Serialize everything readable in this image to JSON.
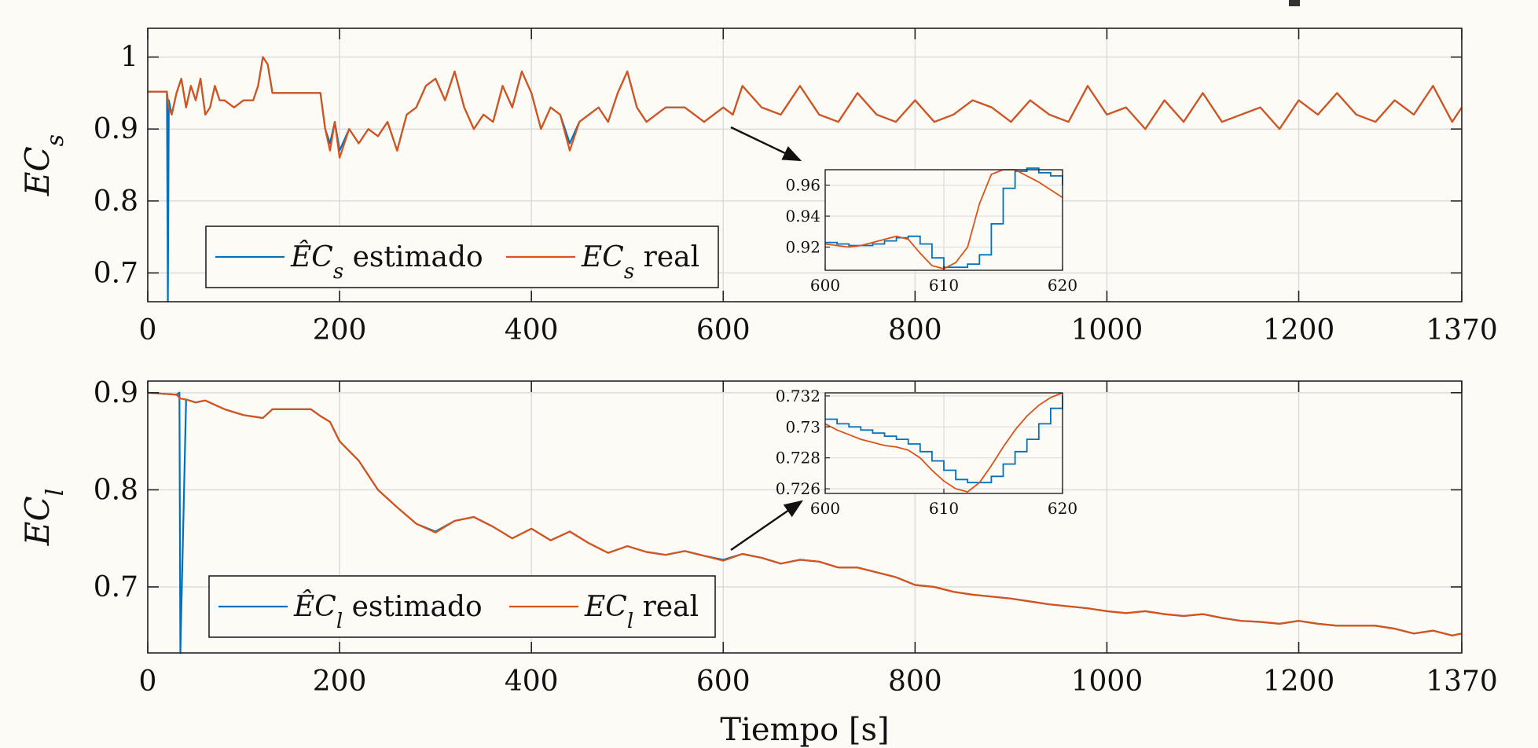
{
  "colors": {
    "estimated": "#0072BD",
    "real": "#D95319",
    "grid": "#dcdcdc",
    "background": "#fdfbf6"
  },
  "chart_data": [
    {
      "type": "line",
      "title": "",
      "xlabel": "",
      "ylabel": "EC",
      "ylabel_sub": "s",
      "xlim": [
        0,
        1370
      ],
      "ylim": [
        0.66,
        1.04
      ],
      "xticks": [
        0,
        200,
        400,
        600,
        800,
        1000,
        1200,
        1370
      ],
      "yticks": [
        0.7,
        0.8,
        0.9,
        1
      ],
      "ytick_labels": [
        "0.7",
        "0.8",
        "0.9",
        "1"
      ],
      "grid": true,
      "legend_position": "bottom-left",
      "series": [
        {
          "name": "ÊC_s estimado",
          "legend_main": "ÊC",
          "legend_sub": "s",
          "legend_suffix": " estimado",
          "color": "#0072BD",
          "x": [
            0,
            20,
            21,
            22,
            25,
            30,
            35,
            40,
            45,
            50,
            55,
            60,
            65,
            70,
            75,
            80,
            90,
            100,
            110,
            115,
            120,
            125,
            130,
            180,
            185,
            190,
            195,
            200,
            210,
            220,
            230,
            240,
            250,
            260,
            270,
            280,
            290,
            300,
            310,
            320,
            330,
            340,
            350,
            360,
            370,
            380,
            390,
            400,
            410,
            420,
            430,
            440,
            450,
            460,
            470,
            480,
            490,
            500,
            510,
            520,
            530,
            540,
            560,
            580,
            600,
            610,
            620,
            640,
            660,
            680,
            700,
            720,
            740,
            760,
            780,
            800,
            820,
            840,
            860,
            880,
            900,
            920,
            940,
            960,
            980,
            1000,
            1020,
            1040,
            1060,
            1080,
            1100,
            1120,
            1140,
            1160,
            1180,
            1200,
            1220,
            1240,
            1260,
            1280,
            1300,
            1320,
            1340,
            1360,
            1370
          ],
          "y": [
            0.952,
            0.952,
            0.66,
            0.94,
            0.92,
            0.95,
            0.97,
            0.93,
            0.96,
            0.94,
            0.97,
            0.92,
            0.93,
            0.96,
            0.94,
            0.94,
            0.93,
            0.94,
            0.94,
            0.96,
            1.0,
            0.99,
            0.95,
            0.95,
            0.9,
            0.88,
            0.91,
            0.87,
            0.9,
            0.88,
            0.9,
            0.89,
            0.91,
            0.87,
            0.92,
            0.93,
            0.96,
            0.97,
            0.94,
            0.98,
            0.93,
            0.9,
            0.92,
            0.91,
            0.96,
            0.93,
            0.98,
            0.95,
            0.9,
            0.93,
            0.92,
            0.88,
            0.91,
            0.92,
            0.93,
            0.91,
            0.95,
            0.98,
            0.93,
            0.91,
            0.92,
            0.93,
            0.93,
            0.91,
            0.93,
            0.92,
            0.96,
            0.93,
            0.92,
            0.96,
            0.92,
            0.91,
            0.95,
            0.92,
            0.91,
            0.94,
            0.91,
            0.92,
            0.94,
            0.93,
            0.91,
            0.94,
            0.92,
            0.91,
            0.96,
            0.92,
            0.93,
            0.9,
            0.94,
            0.91,
            0.95,
            0.91,
            0.92,
            0.93,
            0.9,
            0.94,
            0.92,
            0.95,
            0.92,
            0.91,
            0.94,
            0.92,
            0.96,
            0.91,
            0.93
          ]
        },
        {
          "name": "EC_s real",
          "legend_main": "EC",
          "legend_sub": "s",
          "legend_suffix": " real",
          "color": "#D95319",
          "x": [
            0,
            20,
            22,
            25,
            30,
            35,
            40,
            45,
            50,
            55,
            60,
            65,
            70,
            75,
            80,
            90,
            100,
            110,
            115,
            120,
            125,
            130,
            180,
            185,
            190,
            195,
            200,
            210,
            220,
            230,
            240,
            250,
            260,
            270,
            280,
            290,
            300,
            310,
            320,
            330,
            340,
            350,
            360,
            370,
            380,
            390,
            400,
            410,
            420,
            430,
            440,
            450,
            460,
            470,
            480,
            490,
            500,
            510,
            520,
            530,
            540,
            560,
            580,
            600,
            610,
            620,
            640,
            660,
            680,
            700,
            720,
            740,
            760,
            780,
            800,
            820,
            840,
            860,
            880,
            900,
            920,
            940,
            960,
            980,
            1000,
            1020,
            1040,
            1060,
            1080,
            1100,
            1120,
            1140,
            1160,
            1180,
            1200,
            1220,
            1240,
            1260,
            1280,
            1300,
            1320,
            1340,
            1360,
            1370
          ],
          "y": [
            0.952,
            0.952,
            0.93,
            0.92,
            0.95,
            0.97,
            0.93,
            0.96,
            0.94,
            0.97,
            0.92,
            0.93,
            0.96,
            0.94,
            0.94,
            0.93,
            0.94,
            0.94,
            0.96,
            1.0,
            0.99,
            0.95,
            0.95,
            0.9,
            0.87,
            0.91,
            0.86,
            0.9,
            0.88,
            0.9,
            0.89,
            0.91,
            0.87,
            0.92,
            0.93,
            0.96,
            0.97,
            0.94,
            0.98,
            0.93,
            0.9,
            0.92,
            0.91,
            0.96,
            0.93,
            0.98,
            0.95,
            0.9,
            0.93,
            0.92,
            0.87,
            0.91,
            0.92,
            0.93,
            0.91,
            0.95,
            0.98,
            0.93,
            0.91,
            0.92,
            0.93,
            0.93,
            0.91,
            0.93,
            0.92,
            0.96,
            0.93,
            0.92,
            0.96,
            0.92,
            0.91,
            0.95,
            0.92,
            0.91,
            0.94,
            0.91,
            0.92,
            0.94,
            0.93,
            0.91,
            0.94,
            0.92,
            0.91,
            0.96,
            0.92,
            0.93,
            0.9,
            0.94,
            0.91,
            0.95,
            0.91,
            0.92,
            0.93,
            0.9,
            0.94,
            0.92,
            0.95,
            0.92,
            0.91,
            0.94,
            0.92,
            0.96,
            0.91,
            0.93
          ]
        }
      ],
      "inset": {
        "xlim": [
          600,
          620
        ],
        "ylim": [
          0.905,
          0.97
        ],
        "xticks": [
          600,
          610,
          620
        ],
        "yticks": [
          0.92,
          0.94,
          0.96
        ],
        "ytick_labels": [
          "0.92",
          "0.94",
          "0.96"
        ],
        "series": [
          {
            "name": "estimado",
            "color": "#0072BD",
            "step": true,
            "x": [
              600,
              601,
              602,
              603,
              604,
              605,
              606,
              607,
              608,
              609,
              610,
              611,
              612,
              613,
              614,
              615,
              616,
              617,
              618,
              619,
              620
            ],
            "y": [
              0.923,
              0.922,
              0.921,
              0.921,
              0.922,
              0.924,
              0.926,
              0.927,
              0.922,
              0.913,
              0.907,
              0.907,
              0.909,
              0.915,
              0.935,
              0.958,
              0.969,
              0.971,
              0.968,
              0.966,
              0.96
            ]
          },
          {
            "name": "real",
            "color": "#D95319",
            "step": false,
            "x": [
              600,
              601,
              602,
              603,
              604,
              605,
              606,
              607,
              608,
              609,
              610,
              611,
              612,
              613,
              614,
              615,
              616,
              617,
              618,
              619,
              620
            ],
            "y": [
              0.922,
              0.921,
              0.92,
              0.921,
              0.923,
              0.925,
              0.927,
              0.925,
              0.916,
              0.908,
              0.906,
              0.91,
              0.92,
              0.948,
              0.967,
              0.97,
              0.97,
              0.966,
              0.962,
              0.957,
              0.952
            ]
          }
        ]
      }
    },
    {
      "type": "line",
      "title": "",
      "xlabel": "Tiempo [s]",
      "ylabel": "EC",
      "ylabel_sub": "l",
      "xlim": [
        0,
        1370
      ],
      "ylim": [
        0.632,
        0.912
      ],
      "xticks": [
        0,
        200,
        400,
        600,
        800,
        1000,
        1200,
        1370
      ],
      "yticks": [
        0.7,
        0.8,
        0.9
      ],
      "ytick_labels": [
        "0.7",
        "0.8",
        "0.9"
      ],
      "grid": true,
      "legend_position": "bottom-left",
      "series": [
        {
          "name": "ÊC_l estimado",
          "legend_main": "ÊC",
          "legend_sub": "l",
          "legend_suffix": " estimado",
          "color": "#0072BD",
          "x": [
            0,
            30,
            33,
            34,
            40,
            50,
            60,
            80,
            100,
            120,
            130,
            170,
            180,
            190,
            200,
            220,
            240,
            260,
            280,
            300,
            320,
            340,
            360,
            380,
            400,
            420,
            440,
            460,
            480,
            500,
            520,
            540,
            560,
            580,
            600,
            620,
            640,
            660,
            680,
            700,
            720,
            740,
            760,
            780,
            800,
            820,
            840,
            860,
            880,
            900,
            920,
            940,
            960,
            980,
            1000,
            1020,
            1040,
            1060,
            1080,
            1100,
            1120,
            1140,
            1160,
            1180,
            1200,
            1220,
            1240,
            1260,
            1280,
            1300,
            1320,
            1340,
            1360,
            1370
          ],
          "y": [
            0.9,
            0.898,
            0.9,
            0.632,
            0.893,
            0.89,
            0.892,
            0.883,
            0.877,
            0.874,
            0.883,
            0.883,
            0.876,
            0.87,
            0.85,
            0.83,
            0.8,
            0.782,
            0.765,
            0.757,
            0.768,
            0.772,
            0.762,
            0.75,
            0.76,
            0.748,
            0.757,
            0.745,
            0.735,
            0.742,
            0.736,
            0.733,
            0.737,
            0.732,
            0.728,
            0.734,
            0.73,
            0.724,
            0.728,
            0.726,
            0.72,
            0.72,
            0.715,
            0.71,
            0.702,
            0.7,
            0.695,
            0.692,
            0.69,
            0.688,
            0.685,
            0.682,
            0.68,
            0.678,
            0.675,
            0.673,
            0.675,
            0.672,
            0.67,
            0.672,
            0.668,
            0.665,
            0.664,
            0.662,
            0.665,
            0.662,
            0.66,
            0.66,
            0.66,
            0.657,
            0.652,
            0.655,
            0.65,
            0.652
          ]
        },
        {
          "name": "EC_l real",
          "legend_main": "EC",
          "legend_sub": "l",
          "legend_suffix": " real",
          "color": "#D95319",
          "x": [
            0,
            30,
            34,
            40,
            50,
            60,
            80,
            100,
            120,
            130,
            170,
            180,
            190,
            200,
            220,
            240,
            260,
            280,
            300,
            320,
            340,
            360,
            380,
            400,
            420,
            440,
            460,
            480,
            500,
            520,
            540,
            560,
            580,
            600,
            620,
            640,
            660,
            680,
            700,
            720,
            740,
            760,
            780,
            800,
            820,
            840,
            860,
            880,
            900,
            920,
            940,
            960,
            980,
            1000,
            1020,
            1040,
            1060,
            1080,
            1100,
            1120,
            1140,
            1160,
            1180,
            1200,
            1220,
            1240,
            1260,
            1280,
            1300,
            1320,
            1340,
            1360,
            1370
          ],
          "y": [
            0.9,
            0.898,
            0.894,
            0.893,
            0.89,
            0.892,
            0.883,
            0.877,
            0.874,
            0.883,
            0.883,
            0.876,
            0.87,
            0.85,
            0.83,
            0.8,
            0.782,
            0.765,
            0.756,
            0.768,
            0.772,
            0.762,
            0.75,
            0.76,
            0.748,
            0.757,
            0.745,
            0.735,
            0.742,
            0.736,
            0.733,
            0.737,
            0.732,
            0.727,
            0.734,
            0.73,
            0.724,
            0.728,
            0.726,
            0.72,
            0.72,
            0.715,
            0.71,
            0.702,
            0.7,
            0.695,
            0.692,
            0.69,
            0.688,
            0.685,
            0.682,
            0.68,
            0.678,
            0.675,
            0.673,
            0.675,
            0.672,
            0.67,
            0.672,
            0.668,
            0.665,
            0.664,
            0.662,
            0.665,
            0.662,
            0.66,
            0.66,
            0.66,
            0.657,
            0.652,
            0.655,
            0.65,
            0.652
          ]
        }
      ],
      "inset": {
        "xlim": [
          600,
          620
        ],
        "ylim": [
          0.7257,
          0.7322
        ],
        "xticks": [
          600,
          610,
          620
        ],
        "yticks": [
          0.726,
          0.728,
          0.73,
          0.732
        ],
        "ytick_labels": [
          "0.726",
          "0.728",
          "0.73",
          "0.732"
        ],
        "series": [
          {
            "name": "estimado",
            "color": "#0072BD",
            "step": true,
            "x": [
              600,
              601,
              602,
              603,
              604,
              605,
              606,
              607,
              608,
              609,
              610,
              611,
              612,
              613,
              614,
              615,
              616,
              617,
              618,
              619,
              620
            ],
            "y": [
              0.7305,
              0.7302,
              0.73,
              0.7298,
              0.7296,
              0.7294,
              0.7292,
              0.7289,
              0.7284,
              0.7278,
              0.7272,
              0.7266,
              0.7264,
              0.7264,
              0.7268,
              0.7276,
              0.7284,
              0.7292,
              0.7302,
              0.7312,
              0.732
            ]
          },
          {
            "name": "real",
            "color": "#D95319",
            "step": false,
            "x": [
              600,
              601,
              602,
              603,
              604,
              605,
              606,
              607,
              608,
              609,
              610,
              611,
              612,
              613,
              614,
              615,
              616,
              617,
              618,
              619,
              620
            ],
            "y": [
              0.7302,
              0.7298,
              0.7295,
              0.7292,
              0.729,
              0.7288,
              0.7287,
              0.7285,
              0.728,
              0.7272,
              0.7265,
              0.726,
              0.7258,
              0.7264,
              0.7275,
              0.7287,
              0.7298,
              0.7307,
              0.7314,
              0.7319,
              0.7322
            ]
          }
        ]
      }
    }
  ]
}
